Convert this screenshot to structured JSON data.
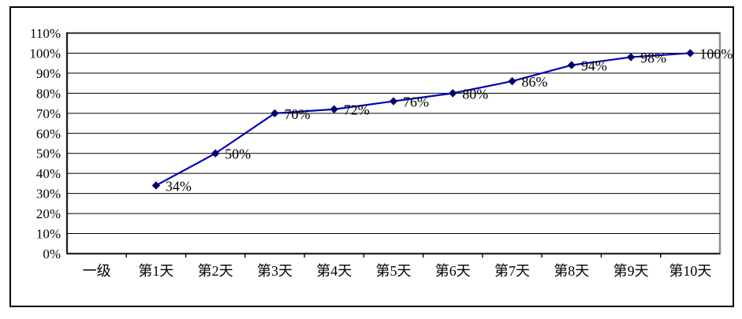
{
  "chart_data": {
    "type": "line",
    "title": "",
    "xlabel": "",
    "ylabel": "",
    "categories": [
      "一级",
      "第1天",
      "第2天",
      "第3天",
      "第4天",
      "第5天",
      "第6天",
      "第7天",
      "第8天",
      "第9天",
      "第10天"
    ],
    "series": [
      {
        "name": "",
        "values": [
          null,
          34,
          50,
          70,
          72,
          76,
          80,
          86,
          94,
          98,
          100
        ],
        "data_labels": [
          null,
          "34%",
          "50%",
          "70%",
          "72%",
          "76%",
          "80%",
          "86%",
          "94%",
          "98%",
          "100%"
        ]
      }
    ],
    "y_axis": {
      "min": 0,
      "max": 110,
      "step": 10,
      "tick_labels": [
        "0%",
        "10%",
        "20%",
        "30%",
        "40%",
        "50%",
        "60%",
        "70%",
        "80%",
        "90%",
        "100%",
        "110%"
      ]
    },
    "grid": true,
    "legend": "none",
    "colors": {
      "line": "#0000bb",
      "marker": "#000066",
      "gridline": "#000000",
      "plot_border": "#909090",
      "axis": "#000000",
      "text": "#000000",
      "background": "#ffffff"
    }
  }
}
